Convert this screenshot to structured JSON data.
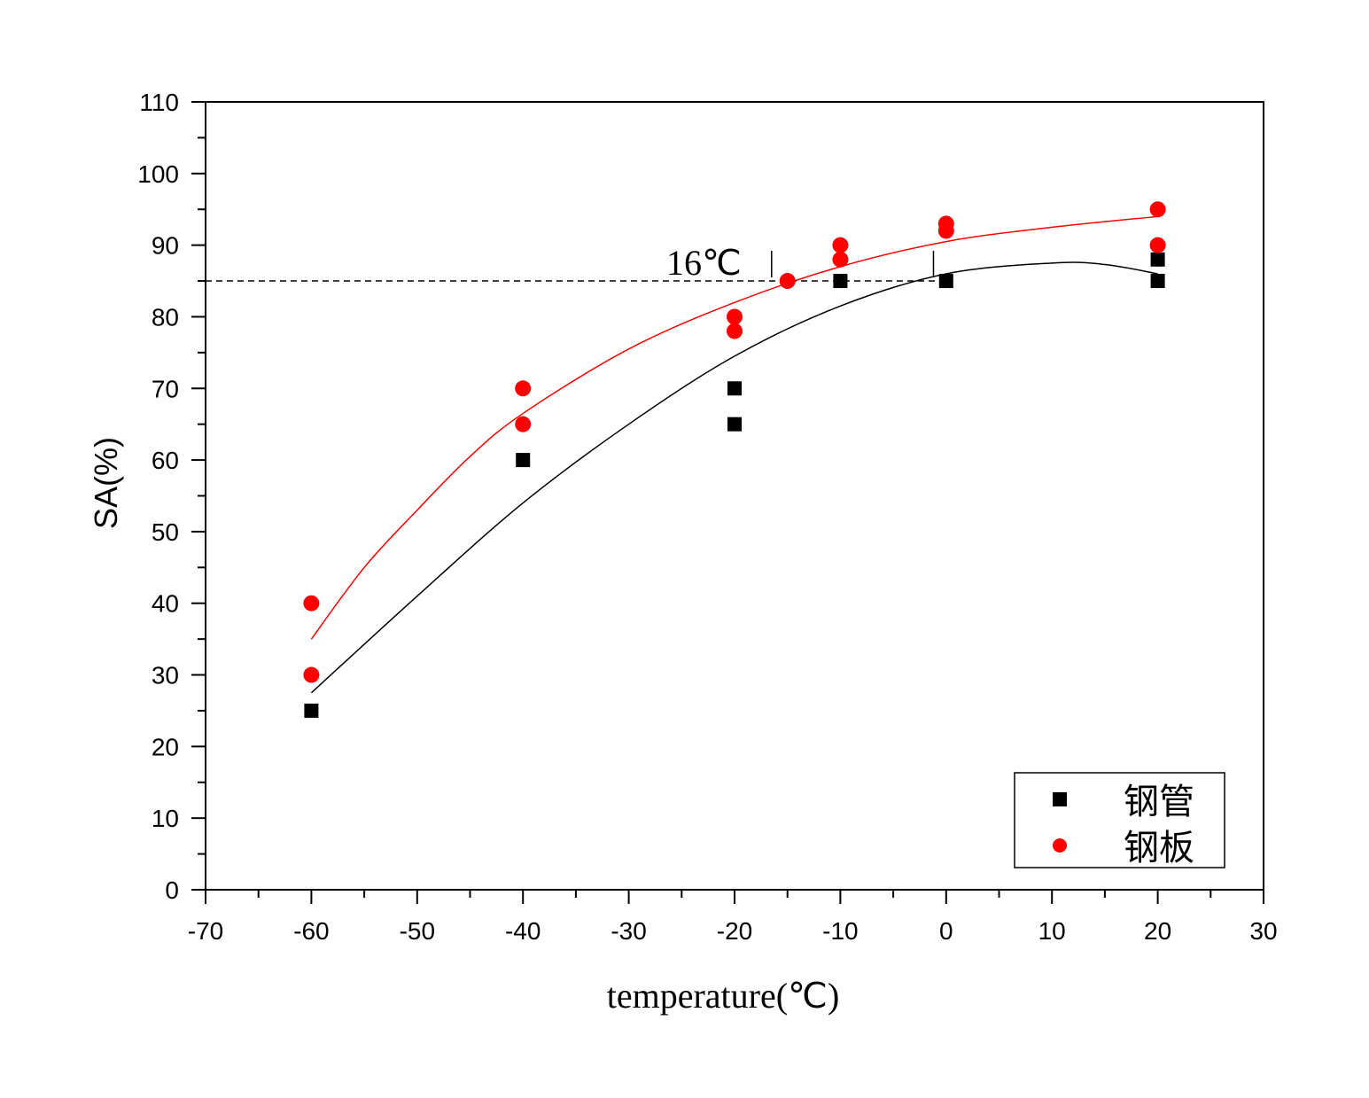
{
  "chart_data": {
    "type": "scatter",
    "title": "",
    "xlabel": "temperature(℃)",
    "ylabel": "SA(%)",
    "xlim": [
      -70,
      30
    ],
    "ylim": [
      0,
      110
    ],
    "x_ticks": [
      "-70",
      "-60",
      "-50",
      "-40",
      "-30",
      "-20",
      "-10",
      "0",
      "10",
      "20",
      "30"
    ],
    "y_ticks": [
      "0",
      "10",
      "20",
      "30",
      "40",
      "50",
      "60",
      "70",
      "80",
      "90",
      "100",
      "110"
    ],
    "grid": false,
    "legend": {
      "placement": "bottom-right"
    },
    "series": [
      {
        "name": "钢管",
        "marker": "square",
        "color": "#000000",
        "points": [
          [
            -60,
            25
          ],
          [
            -40,
            60
          ],
          [
            -20,
            70
          ],
          [
            -20,
            65
          ],
          [
            -10,
            85
          ],
          [
            0,
            85
          ],
          [
            20,
            88
          ],
          [
            20,
            85
          ]
        ],
        "fit": [
          [
            -60,
            27.5
          ],
          [
            -50,
            41
          ],
          [
            -40,
            54
          ],
          [
            -30,
            65
          ],
          [
            -20,
            74.5
          ],
          [
            -10,
            81.5
          ],
          [
            0,
            86
          ],
          [
            10,
            87.5
          ],
          [
            15,
            87.3
          ],
          [
            20,
            86
          ]
        ]
      },
      {
        "name": "钢板",
        "marker": "circle",
        "color": "#ff0000",
        "points": [
          [
            -60,
            40
          ],
          [
            -60,
            30
          ],
          [
            -40,
            70
          ],
          [
            -40,
            65
          ],
          [
            -20,
            80
          ],
          [
            -20,
            78
          ],
          [
            -15,
            85
          ],
          [
            -10,
            90
          ],
          [
            -10,
            88
          ],
          [
            0,
            93
          ],
          [
            0,
            92
          ],
          [
            20,
            95
          ],
          [
            20,
            90
          ]
        ],
        "fit": [
          [
            -60,
            35
          ],
          [
            -55,
            45
          ],
          [
            -50,
            53
          ],
          [
            -45,
            60.5
          ],
          [
            -40,
            66.5
          ],
          [
            -30,
            75.5
          ],
          [
            -20,
            82
          ],
          [
            -10,
            87
          ],
          [
            0,
            90.5
          ],
          [
            10,
            92.5
          ],
          [
            20,
            94
          ]
        ]
      }
    ],
    "reference_line": {
      "y": 85,
      "x_from": -70,
      "x_to": 0,
      "style": "dashed"
    },
    "annotations": [
      {
        "text": "16℃",
        "marker_x": [
          -16.5,
          -1.2
        ]
      }
    ]
  }
}
